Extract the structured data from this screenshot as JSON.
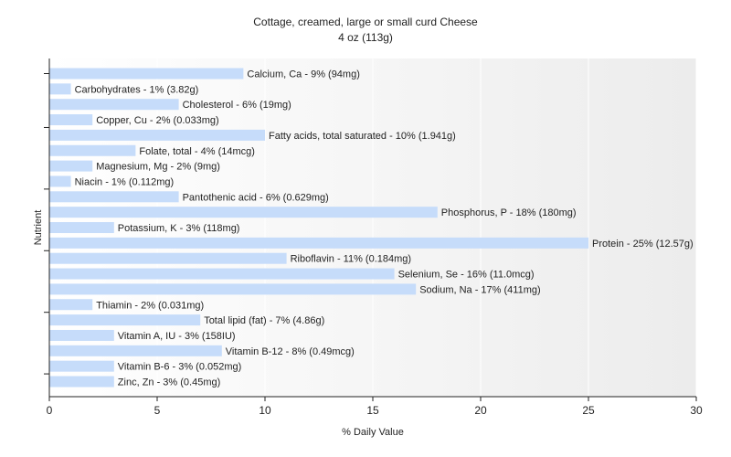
{
  "chart_data": {
    "type": "bar",
    "orientation": "horizontal",
    "title": "Cottage, creamed, large or small curd Cheese",
    "subtitle": "4 oz (113g)",
    "xlabel": "% Daily Value",
    "ylabel": "Nutrient",
    "xlim": [
      0,
      30
    ],
    "xticks": [
      0,
      5,
      10,
      15,
      20,
      25,
      30
    ],
    "bar_color": "#c6dcfa",
    "categories": [
      "Calcium, Ca",
      "Carbohydrates",
      "Cholesterol",
      "Copper, Cu",
      "Fatty acids, total saturated",
      "Folate, total",
      "Magnesium, Mg",
      "Niacin",
      "Pantothenic acid",
      "Phosphorus, P",
      "Potassium, K",
      "Protein",
      "Riboflavin",
      "Selenium, Se",
      "Sodium, Na",
      "Thiamin",
      "Total lipid (fat)",
      "Vitamin A, IU",
      "Vitamin B-12",
      "Vitamin B-6",
      "Zinc, Zn"
    ],
    "values": [
      9,
      1,
      6,
      2,
      10,
      4,
      2,
      1,
      6,
      18,
      3,
      25,
      11,
      16,
      17,
      2,
      7,
      3,
      8,
      3,
      3
    ],
    "labels": [
      "Calcium, Ca - 9% (94mg)",
      "Carbohydrates - 1% (3.82g)",
      "Cholesterol - 6% (19mg)",
      "Copper, Cu - 2% (0.033mg)",
      "Fatty acids, total saturated - 10% (1.941g)",
      "Folate, total - 4% (14mcg)",
      "Magnesium, Mg - 2% (9mg)",
      "Niacin - 1% (0.112mg)",
      "Pantothenic acid - 6% (0.629mg)",
      "Phosphorus, P - 18% (180mg)",
      "Potassium, K - 3% (118mg)",
      "Protein - 25% (12.57g)",
      "Riboflavin - 11% (0.184mg)",
      "Selenium, Se - 16% (11.0mcg)",
      "Sodium, Na - 17% (411mg)",
      "Thiamin - 2% (0.031mg)",
      "Total lipid (fat) - 7% (4.86g)",
      "Vitamin A, IU - 3% (158IU)",
      "Vitamin B-12 - 8% (0.49mcg)",
      "Vitamin B-6 - 3% (0.052mg)",
      "Zinc, Zn - 3% (0.45mg)"
    ]
  }
}
